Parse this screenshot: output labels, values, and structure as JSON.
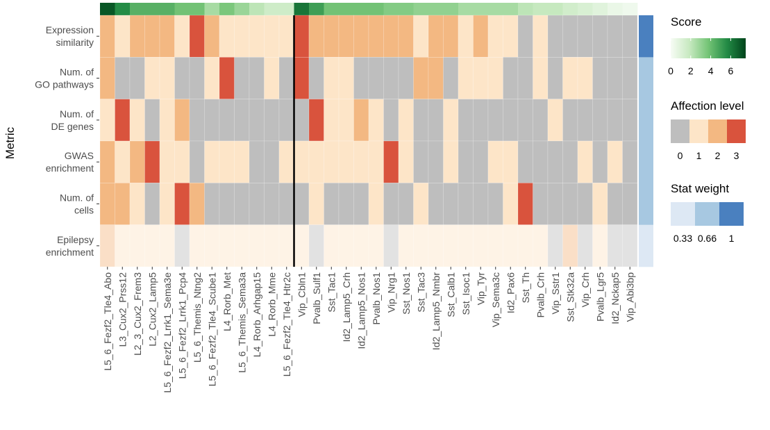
{
  "chart_data": {
    "type": "heatmap",
    "ylabel": "Metric",
    "rows": [
      [
        "Expression",
        "similarity"
      ],
      [
        "Num. of",
        "GO pathways"
      ],
      [
        "Num. of",
        "DE genes"
      ],
      [
        "GWAS",
        "enrichment"
      ],
      [
        "Num. of",
        "cells"
      ],
      [
        "Epilepsy",
        "enrichment"
      ]
    ],
    "columns": [
      "L5_6_Fezf2_Tle4_Abo",
      "L3_Cux2_Prss12",
      "L2_3_Cux2_Frem3",
      "L2_Cux2_Lamp5",
      "L5_6_Fezf2_Lrrk1_Sema3e",
      "L5_6_Fezf2_Lrrk1_Pcp4",
      "L5_6_Themis_Ntng2",
      "L5_6_Fezf2_Tle4_Scube1",
      "L4_Rorb_Met",
      "L5_6_Themis_Sema3a",
      "L4_Rorb_Arhgap15",
      "L4_Rorb_Mme",
      "L5_6_Fezf2_Tle4_Htr2c",
      "Vip_Cbln1",
      "Pvalb_Sulf1",
      "Sst_Tac1",
      "Id2_Lamp5_Crh",
      "Id2_Lamp5_Nos1",
      "Pvalb_Nos1",
      "Vip_Nrg1",
      "Sst_Nos1",
      "Sst_Tac3",
      "Id2_Lamp5_Nmbr",
      "Sst_Calb1",
      "Sst_Isoc1",
      "Vip_Tyr",
      "Vip_Sema3c",
      "Id2_Pax6",
      "Sst_Th",
      "Pvalb_Crh",
      "Vip_Sstr1",
      "Sst_Stk32a",
      "Vip_Crh",
      "Pvalb_Lgr5",
      "Id2_Nckap5",
      "Vip_Abi3bp"
    ],
    "separator_after_column": "L5_6_Fezf2_Tle4_Htr2c",
    "score": [
      7,
      5.6,
      4.4,
      4.4,
      4.4,
      3.8,
      3.8,
      2.6,
      3.6,
      2.9,
      2.1,
      1.6,
      1.6,
      6.2,
      5.0,
      3.8,
      3.8,
      3.8,
      3.8,
      3.4,
      3.4,
      3.1,
      3.1,
      3.1,
      2.6,
      2.6,
      2.6,
      2.6,
      2.1,
      1.9,
      1.9,
      1.5,
      1.2,
      0.9,
      0.5,
      0.3
    ],
    "affection": [
      [
        2,
        1,
        2,
        2,
        2,
        1,
        3,
        2,
        1,
        1,
        1,
        1,
        1,
        3,
        2,
        2,
        2,
        2,
        2,
        2,
        2,
        1,
        2,
        2,
        1,
        2,
        1,
        1,
        0,
        1,
        0,
        0,
        0,
        0,
        0,
        0
      ],
      [
        2,
        0,
        0,
        1,
        1,
        0,
        0,
        1,
        3,
        0,
        0,
        1,
        0,
        3,
        0,
        1,
        1,
        0,
        0,
        0,
        0,
        2,
        2,
        0,
        1,
        1,
        1,
        0,
        0,
        1,
        0,
        1,
        1,
        0,
        0,
        0
      ],
      [
        1,
        3,
        1,
        0,
        1,
        2,
        0,
        0,
        0,
        0,
        0,
        0,
        0,
        0,
        3,
        1,
        1,
        2,
        1,
        0,
        1,
        0,
        0,
        1,
        0,
        0,
        0,
        0,
        0,
        0,
        1,
        0,
        0,
        0,
        0,
        0
      ],
      [
        2,
        1,
        2,
        3,
        1,
        1,
        0,
        1,
        1,
        1,
        0,
        0,
        1,
        1,
        1,
        1,
        1,
        1,
        1,
        3,
        1,
        0,
        0,
        1,
        0,
        0,
        1,
        1,
        0,
        0,
        0,
        0,
        1,
        0,
        1,
        0
      ],
      [
        2,
        2,
        1,
        0,
        1,
        3,
        2,
        0,
        0,
        0,
        0,
        0,
        0,
        0,
        1,
        0,
        0,
        0,
        1,
        0,
        0,
        1,
        0,
        0,
        0,
        0,
        0,
        1,
        3,
        0,
        0,
        0,
        0,
        1,
        0,
        0
      ],
      [
        2,
        1,
        1,
        1,
        1,
        0,
        1,
        1,
        1,
        1,
        1,
        1,
        1,
        1,
        0,
        1,
        1,
        1,
        1,
        0,
        1,
        1,
        1,
        1,
        1,
        1,
        1,
        1,
        1,
        1,
        0,
        2,
        0,
        1,
        0,
        0
      ]
    ],
    "stat_weight": [
      1,
      0.66,
      0.66,
      0.66,
      0.66,
      0.33
    ],
    "legend_score": {
      "title": "Score",
      "ticks": [
        "0",
        "2",
        "4",
        "6"
      ],
      "max": 7.5,
      "colors": [
        "#f7fcf5",
        "#c7e9c0",
        "#74c476",
        "#238b45",
        "#00441b"
      ]
    },
    "legend_affection": {
      "title": "Affection level",
      "ticks": [
        "0",
        "1",
        "2",
        "3"
      ],
      "colors": [
        "#bebebe",
        "#fde5c8",
        "#f3b882",
        "#d9533d"
      ]
    },
    "legend_weight": {
      "title": "Stat weight",
      "ticks": [
        "0.33",
        "0.66",
        "1"
      ],
      "colors": [
        "#dde8f4",
        "#a7c8e1",
        "#4a80bf"
      ]
    }
  }
}
